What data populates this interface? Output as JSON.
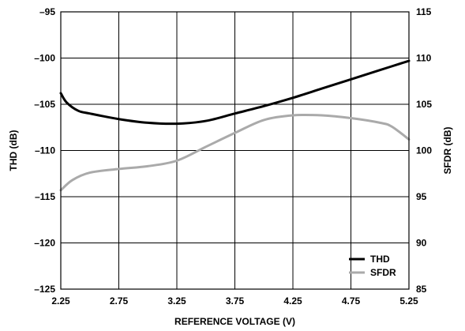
{
  "chart_data": {
    "type": "line",
    "title": "",
    "xlabel": "REFERENCE VOLTAGE (V)",
    "ylabel_left": "THD (dB)",
    "ylabel_right": "SFDR (dB)",
    "xlim": [
      2.25,
      5.25
    ],
    "ylim_left": [
      -125,
      -95
    ],
    "ylim_right": [
      85,
      115
    ],
    "x_ticks": [
      2.25,
      2.75,
      3.25,
      3.75,
      4.25,
      4.75,
      5.25
    ],
    "x_tick_labels": [
      "2.25",
      "2.75",
      "3.25",
      "3.75",
      "4.25",
      "4.75",
      "5.25"
    ],
    "y_left_ticks": [
      -125,
      -120,
      -115,
      -110,
      -105,
      -100,
      -95
    ],
    "y_left_tick_labels": [
      "–125",
      "–120",
      "–115",
      "–110",
      "–105",
      "–100",
      "–95"
    ],
    "y_right_ticks": [
      85,
      90,
      95,
      100,
      105,
      110,
      115
    ],
    "y_right_tick_labels": [
      "85",
      "90",
      "95",
      "100",
      "105",
      "110",
      "115"
    ],
    "grid": true,
    "legend_position": "bottom-right",
    "series": [
      {
        "name": "THD",
        "axis": "left",
        "color": "#000000",
        "x": [
          2.25,
          2.3,
          2.4,
          2.5,
          2.75,
          3.0,
          3.25,
          3.5,
          3.75,
          4.0,
          4.25,
          4.5,
          4.75,
          5.0,
          5.25
        ],
        "y": [
          -103.8,
          -104.8,
          -105.7,
          -106.0,
          -106.6,
          -107.0,
          -107.1,
          -106.8,
          -106.0,
          -105.2,
          -104.3,
          -103.3,
          -102.3,
          -101.3,
          -100.3
        ]
      },
      {
        "name": "SFDR",
        "axis": "right",
        "color": "#aaaaaa",
        "x": [
          2.25,
          2.35,
          2.5,
          2.75,
          3.0,
          3.25,
          3.5,
          3.75,
          4.0,
          4.25,
          4.5,
          4.75,
          5.0,
          5.1,
          5.25
        ],
        "y": [
          95.7,
          96.8,
          97.6,
          98.0,
          98.3,
          98.9,
          100.4,
          101.9,
          103.3,
          103.8,
          103.8,
          103.5,
          103.0,
          102.6,
          101.2
        ]
      }
    ]
  }
}
